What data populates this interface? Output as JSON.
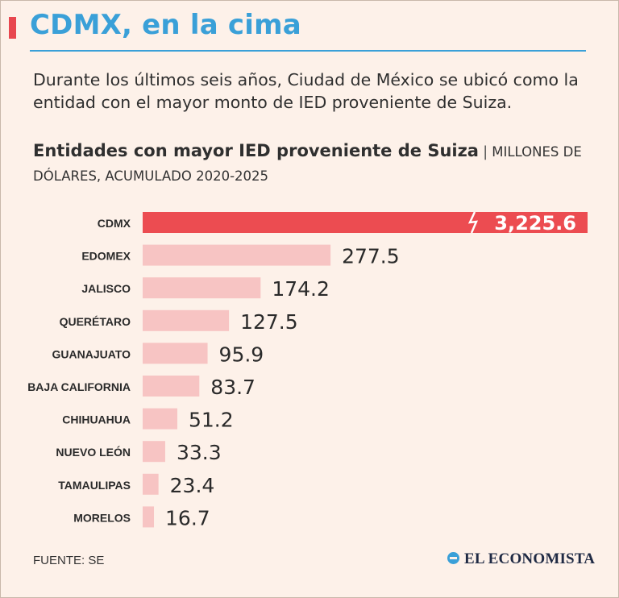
{
  "header": {
    "title": "CDMX, en la cima",
    "subtitle": "Durante los últimos seis años, Ciudad de México se ubicó como la entidad con el mayor monto de IED proveniente de Suiza."
  },
  "chart_heading": {
    "title": "Entidades con mayor IED proveniente de Suiza",
    "separator": "|",
    "units": "MILLONES DE DÓLARES, ACUMULADO 2020-2025"
  },
  "chart_data": {
    "type": "bar",
    "orientation": "horizontal",
    "title": "Entidades con mayor IED proveniente de Suiza",
    "unit": "Millones de dólares, acumulado 2020-2025",
    "categories": [
      "CDMX",
      "EDOMEX",
      "JALISCO",
      "QUERÉTARO",
      "GUANAJUATO",
      "BAJA CALIFORNIA",
      "CHIHUAHUA",
      "NUEVO LEÓN",
      "TAMAULIPAS",
      "MORELOS"
    ],
    "values": [
      3225.6,
      277.5,
      174.2,
      127.5,
      95.9,
      83.7,
      51.2,
      33.3,
      23.4,
      16.7
    ],
    "labels": [
      "3,225.6",
      "277.5",
      "174.2",
      "127.5",
      "95.9",
      "83.7",
      "51.2",
      "33.3",
      "23.4",
      "16.7"
    ],
    "highlight_index": 0,
    "axis_break_after": 0,
    "scale_max": 400,
    "colors": {
      "highlight": "#ec4c51",
      "bar": "#f7c4c3",
      "highlight_label": "#ffffff",
      "label": "#2a2a2a"
    }
  },
  "footer": {
    "source": "FUENTE: SE",
    "brand": "EL ECONOMISTA"
  }
}
